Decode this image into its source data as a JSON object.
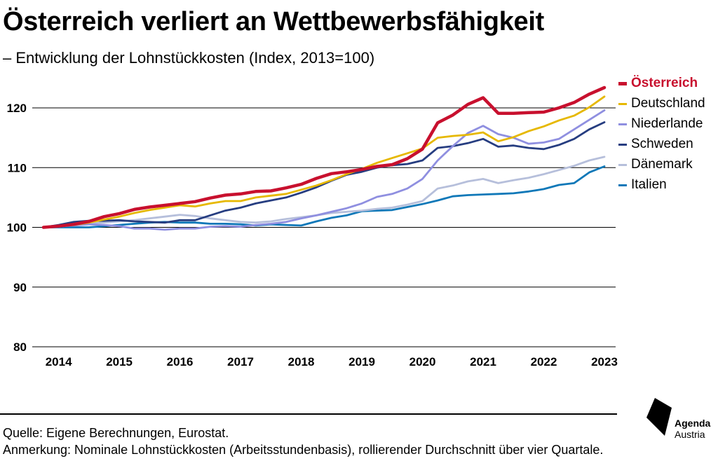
{
  "header": {
    "title": "Österreich verliert an Wettbewerbsfähigkeit",
    "subtitle": "– Entwicklung der Lohnstückkosten (Index, 2013=100)"
  },
  "footer": {
    "source": "Quelle: Eigene Berechnungen, Eurostat.",
    "note": "Anmerkung: Nominale Lohnstückkosten (Arbeitsstundenbasis), rollierender Durchschnitt über vier Quartale."
  },
  "logo": {
    "line1": "Agenda",
    "line2": "Austria"
  },
  "chart_data": {
    "type": "line",
    "title": "Österreich verliert an Wettbewerbsfähigkeit",
    "subtitle": "– Entwicklung der Lohnstückkosten (Index, 2013=100)",
    "xlabel": "",
    "ylabel": "",
    "ylim": [
      80,
      125
    ],
    "yticks": [
      80,
      90,
      100,
      110,
      120
    ],
    "xticks": [
      2014,
      2015,
      2016,
      2017,
      2018,
      2019,
      2020,
      2021,
      2022,
      2023
    ],
    "xlim": [
      2013.75,
      2023.0
    ],
    "grid": "horizontal",
    "legend_position": "right",
    "x": [
      2013.75,
      2014.0,
      2014.25,
      2014.5,
      2014.75,
      2015.0,
      2015.25,
      2015.5,
      2015.75,
      2016.0,
      2016.25,
      2016.5,
      2016.75,
      2017.0,
      2017.25,
      2017.5,
      2017.75,
      2018.0,
      2018.25,
      2018.5,
      2018.75,
      2019.0,
      2019.25,
      2019.5,
      2019.75,
      2020.0,
      2020.25,
      2020.5,
      2020.75,
      2021.0,
      2021.25,
      2021.5,
      2021.75,
      2022.0,
      2022.25,
      2022.5,
      2022.75,
      2023.0
    ],
    "series": [
      {
        "name": "Österreich",
        "color": "#c8102e",
        "width": 4.5,
        "values": [
          100.0,
          100.2,
          100.5,
          101.0,
          101.8,
          102.3,
          103.0,
          103.4,
          103.7,
          104.0,
          104.3,
          104.9,
          105.4,
          105.6,
          106.0,
          106.1,
          106.6,
          107.2,
          108.2,
          109.0,
          109.3,
          109.7,
          110.2,
          110.5,
          111.5,
          113.1,
          117.5,
          118.8,
          120.6,
          121.7,
          119.1,
          119.1,
          119.2,
          119.3,
          120.0,
          120.9,
          122.3,
          123.4
        ]
      },
      {
        "name": "Deutschland",
        "color": "#e6b800",
        "width": 2.8,
        "values": [
          100.0,
          100.2,
          100.4,
          100.8,
          101.3,
          101.8,
          102.4,
          102.9,
          103.3,
          103.7,
          103.5,
          104.0,
          104.4,
          104.4,
          105.0,
          105.3,
          105.6,
          106.3,
          107.0,
          107.9,
          108.9,
          109.8,
          110.8,
          111.6,
          112.4,
          113.2,
          115.0,
          115.3,
          115.5,
          115.9,
          114.4,
          115.1,
          116.1,
          116.9,
          117.9,
          118.7,
          120.1,
          121.9
        ]
      },
      {
        "name": "Niederlande",
        "color": "#8f8fe0",
        "width": 2.8,
        "values": [
          100.0,
          100.2,
          100.3,
          100.5,
          100.4,
          100.2,
          99.8,
          99.8,
          99.6,
          99.8,
          99.8,
          100.1,
          100.2,
          100.1,
          100.4,
          100.6,
          100.9,
          101.5,
          102.0,
          102.6,
          103.2,
          104.0,
          105.1,
          105.6,
          106.5,
          108.1,
          111.2,
          113.6,
          115.8,
          117.0,
          115.6,
          115.0,
          114.0,
          114.2,
          114.8,
          116.4,
          118.0,
          119.6
        ]
      },
      {
        "name": "Schweden",
        "color": "#263d80",
        "width": 2.8,
        "values": [
          100.0,
          100.4,
          100.9,
          101.1,
          101.1,
          101.2,
          101.0,
          100.9,
          100.8,
          101.2,
          101.2,
          102.0,
          102.8,
          103.3,
          104.0,
          104.5,
          105.0,
          105.8,
          106.7,
          107.8,
          108.8,
          109.3,
          110.0,
          110.4,
          110.6,
          111.2,
          113.3,
          113.6,
          114.1,
          114.8,
          113.5,
          113.7,
          113.3,
          113.1,
          113.8,
          114.8,
          116.4,
          117.6
        ]
      },
      {
        "name": "Dänemark",
        "color": "#b6bfdb",
        "width": 2.8,
        "values": [
          100.0,
          100.1,
          100.4,
          100.7,
          100.8,
          101.0,
          101.2,
          101.5,
          101.8,
          102.1,
          101.9,
          101.5,
          101.2,
          100.9,
          100.8,
          101.0,
          101.4,
          101.7,
          102.0,
          102.4,
          102.6,
          102.8,
          103.1,
          103.3,
          103.8,
          104.4,
          106.5,
          107.0,
          107.7,
          108.1,
          107.4,
          107.9,
          108.3,
          108.9,
          109.6,
          110.3,
          111.2,
          111.8
        ]
      },
      {
        "name": "Italien",
        "color": "#0f78b8",
        "width": 2.8,
        "values": [
          100.0,
          100.0,
          100.0,
          100.0,
          100.2,
          100.4,
          100.6,
          100.8,
          100.9,
          100.8,
          100.8,
          100.6,
          100.6,
          100.5,
          100.3,
          100.5,
          100.4,
          100.3,
          101.0,
          101.6,
          102.0,
          102.7,
          102.8,
          102.9,
          103.4,
          103.9,
          104.5,
          105.2,
          105.4,
          105.5,
          105.6,
          105.7,
          106.0,
          106.4,
          107.1,
          107.4,
          109.2,
          110.2
        ]
      }
    ]
  }
}
